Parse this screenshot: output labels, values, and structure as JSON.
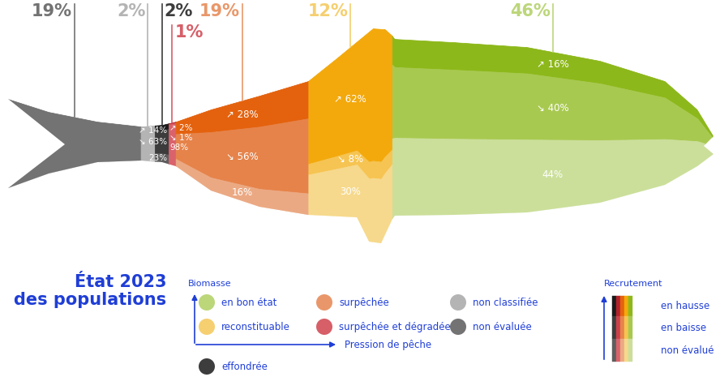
{
  "chart_data": {
    "type": "mekko",
    "title": "État 2023\ndes populations",
    "y_label": "Biomasse",
    "x_label": "Pression de pêche",
    "series_title": "Recrutement",
    "categories": [
      "non évaluée",
      "non classifiée",
      "effondrée",
      "surpêchée et dégradée",
      "surpêchée",
      "reconstituable",
      "en bon état"
    ],
    "values": [
      19,
      2,
      2,
      1,
      19,
      12,
      46
    ],
    "value_labels": [
      "19%",
      "2%",
      "2%",
      "1%",
      "19%",
      "12%",
      "46%"
    ],
    "colors": [
      "#737373",
      "#b4b4b4",
      "#3d3d3d",
      "#d65f68",
      "#e9976a",
      "#f5cf70",
      "#bcd67a"
    ],
    "data_labels": true,
    "series": [
      {
        "name": "en hausse",
        "values": [
          null,
          null,
          14,
          2,
          28,
          62,
          16
        ],
        "value_labels": [
          null,
          null,
          "↗ 14%",
          "↗ 2%",
          "↗ 28%",
          "↗ 62%",
          "↗ 16%"
        ],
        "colors": [
          null,
          null,
          "#1b1b1b",
          "#b3212b",
          "#e4620e",
          "#f3a90c",
          "#8db81b"
        ]
      },
      {
        "name": "en baisse",
        "values": [
          null,
          null,
          63,
          1,
          56,
          8,
          40
        ],
        "value_labels": [
          null,
          null,
          "↘ 63%",
          "↘ 1%",
          "↘ 56%",
          "↘ 8%",
          "↘ 40%"
        ],
        "colors": [
          null,
          null,
          "#3c3c3c",
          "#cc4049",
          "#e6834a",
          "#f6c452",
          "#a8c950"
        ]
      },
      {
        "name": "non évalué",
        "values": [
          null,
          null,
          23,
          98,
          16,
          30,
          44
        ],
        "value_labels": [
          null,
          null,
          "23%",
          "98%",
          "16%",
          "30%",
          "44%"
        ],
        "colors": [
          null,
          null,
          "#5e5e5e",
          "#d9626b",
          "#eba983",
          "#f6d98c",
          "#cbdf9a"
        ]
      }
    ]
  }
}
